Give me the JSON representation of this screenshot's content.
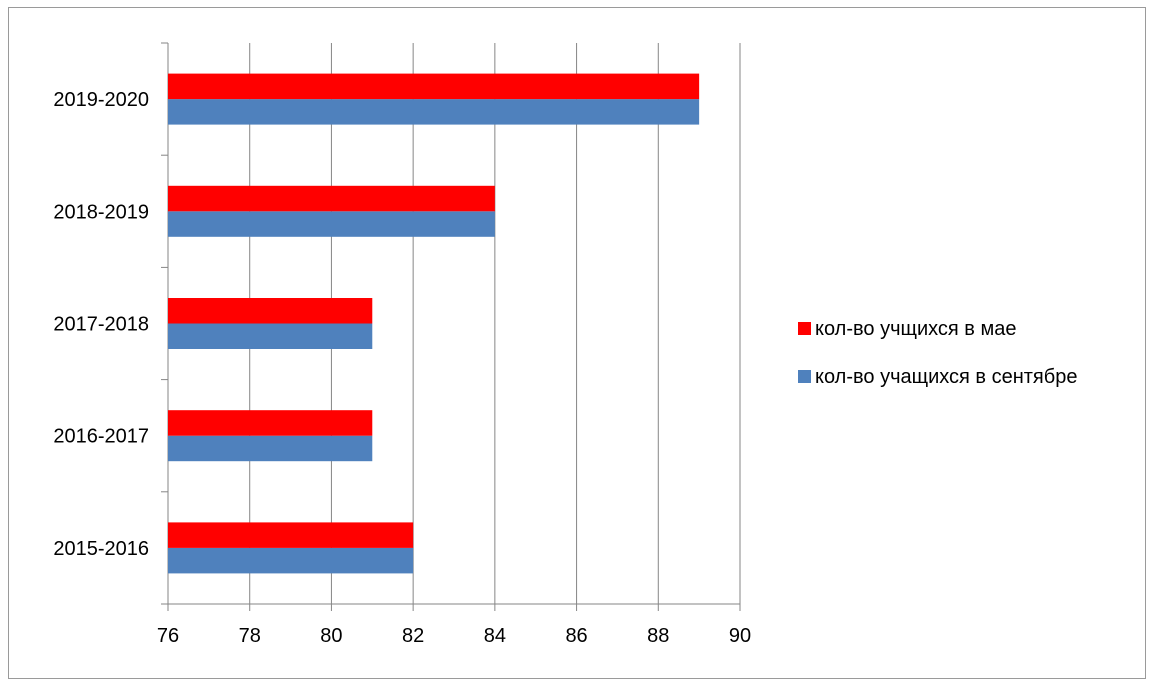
{
  "chart_data": {
    "type": "bar",
    "orientation": "horizontal",
    "categories": [
      "2015-2016",
      "2016-2017",
      "2017-2018",
      "2018-2019",
      "2019-2020"
    ],
    "series": [
      {
        "name": "кол-во учащихся в сентябре",
        "color": "#4F81BD",
        "values": [
          82,
          81,
          81,
          84,
          89
        ]
      },
      {
        "name": "кол-во учщихся в мае",
        "color": "#FF0000",
        "values": [
          82,
          81,
          81,
          84,
          89
        ]
      }
    ],
    "x_ticks": [
      "76",
      "78",
      "80",
      "82",
      "84",
      "86",
      "88",
      "90"
    ],
    "xlim": [
      76,
      90
    ],
    "grid": "vertical major gridlines",
    "legend_position": "right",
    "legend_order": [
      "кол-во учщихся в мае",
      "кол-во учащихся в сентябре"
    ]
  }
}
